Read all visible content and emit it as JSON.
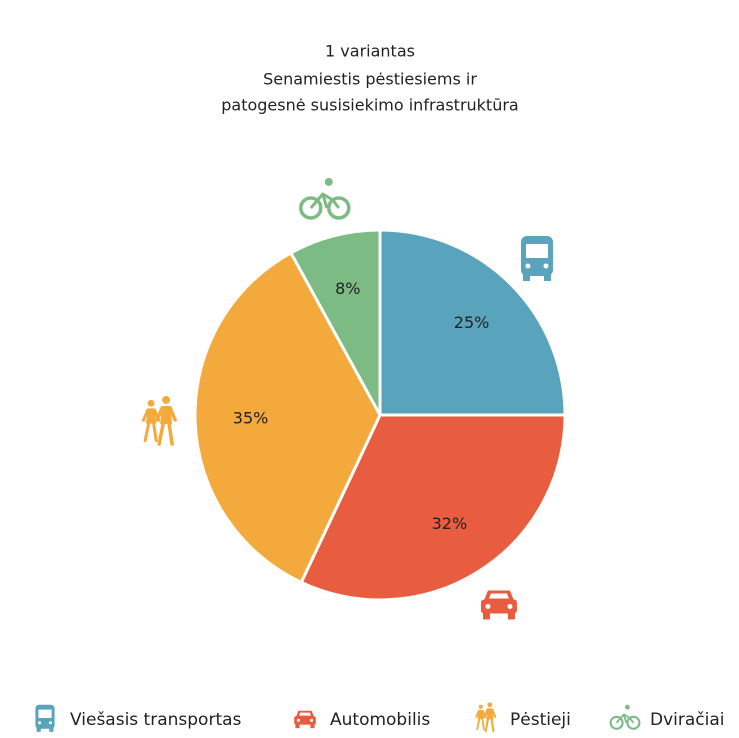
{
  "chart_data": {
    "type": "pie",
    "title": "1 variantas",
    "subtitle": [
      "Senamiestis pėstiesiems ir",
      "patogesnė susisiekimo infrastruktūra"
    ],
    "categories": [
      "Viešasis transportas",
      "Automobilis",
      "Pėstieji",
      "Dviračiai"
    ],
    "values": [
      25,
      32,
      35,
      8
    ],
    "value_labels": [
      "25%",
      "32%",
      "35%",
      "8%"
    ],
    "colors": [
      "#5aa3bd",
      "#e85c3f",
      "#f3a93c",
      "#7dbb84"
    ],
    "legend": "bottom"
  }
}
